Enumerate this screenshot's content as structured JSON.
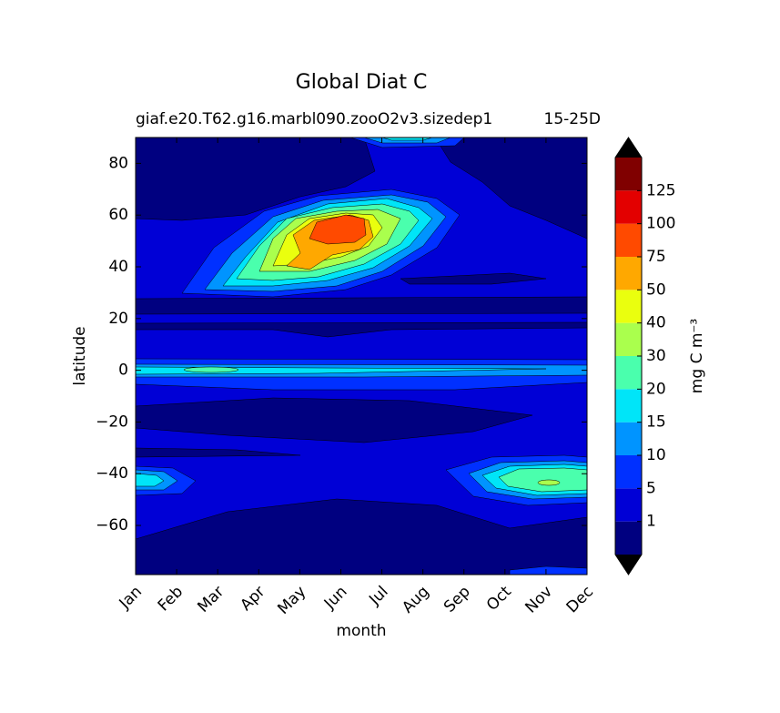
{
  "chart_data": {
    "type": "contour",
    "title": "Global Diat C",
    "subtitle": "giaf.e20.T62.g16.marbl090.zooO2v3.sizedep1",
    "subtitle_right": "15-25D",
    "xlabel": "month",
    "ylabel": "latitude",
    "categories": [
      "Jan",
      "Feb",
      "Mar",
      "Apr",
      "May",
      "Jun",
      "Jul",
      "Aug",
      "Sep",
      "Oct",
      "Nov",
      "Dec"
    ],
    "ylim": [
      -79,
      90
    ],
    "yticks": [
      {
        "value": -60,
        "label": "−60"
      },
      {
        "value": -40,
        "label": "−40"
      },
      {
        "value": -20,
        "label": "−20"
      },
      0,
      20,
      40,
      60,
      80
    ],
    "colorbar": {
      "label": "mg C m⁻³",
      "levels": [
        1,
        5,
        10,
        15,
        20,
        30,
        40,
        50,
        75,
        100,
        125
      ],
      "colors": [
        "#000080",
        "#0000d6",
        "#0030ff",
        "#0094ff",
        "#00e5f8",
        "#4affad",
        "#aaff4d",
        "#eaff0e",
        "#ffa800",
        "#ff4a00",
        "#e30000",
        "#800000"
      ],
      "extend_color": "#000000"
    }
  }
}
